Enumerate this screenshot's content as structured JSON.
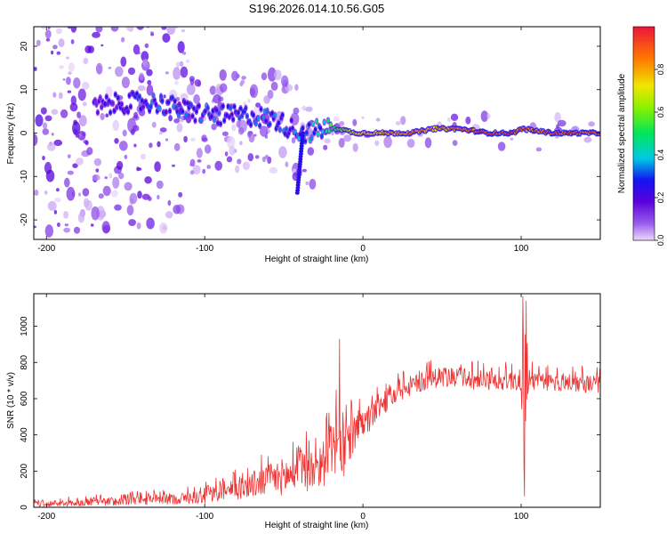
{
  "title": "S196.2026.014.10.56.G05",
  "chart_data": [
    {
      "type": "heatmap",
      "xlabel": "Height of straight line (km)",
      "ylabel": "Frequency (Hz)",
      "xlim": [
        -208,
        150
      ],
      "ylim": [
        -24.5,
        24.5
      ],
      "xticks": [
        -200,
        -100,
        0,
        100
      ],
      "yticks": [
        -20,
        -10,
        0,
        10,
        20
      ],
      "colorbar": {
        "label": "Normalized spectral amplitude",
        "range": [
          0,
          1
        ],
        "ticks": [
          "0.0",
          "0.2",
          "0.4",
          "0.6",
          "0.8"
        ],
        "tick_values": [
          0.0,
          0.2,
          0.4,
          0.6,
          0.8
        ]
      },
      "ridge": {
        "x": [
          -170,
          -150,
          -130,
          -110,
          -90,
          -70,
          -55,
          -45,
          -35,
          -25,
          -15,
          -5,
          0,
          10,
          30,
          45,
          60,
          80,
          95,
          100,
          120,
          150
        ],
        "freq": [
          6,
          7,
          7,
          5,
          4,
          4,
          3,
          1,
          0,
          1,
          1,
          0,
          0,
          0,
          0,
          1,
          1,
          0,
          0,
          1,
          0,
          0
        ],
        "amplitude": [
          0.2,
          0.25,
          0.3,
          0.3,
          0.3,
          0.3,
          0.3,
          0.3,
          0.35,
          0.45,
          0.55,
          0.65,
          0.75,
          0.8,
          0.85,
          0.8,
          0.85,
          0.95,
          0.95,
          0.85,
          0.95,
          0.9
        ]
      },
      "scatter_extent_x": [
        -208,
        -110
      ]
    },
    {
      "type": "line",
      "xlabel": "Height of straight line (km)",
      "ylabel": "SNR (10 * v/v)",
      "xlim": [
        -208,
        150
      ],
      "ylim": [
        0,
        1180
      ],
      "xticks": [
        -200,
        -100,
        0,
        100
      ],
      "yticks": [
        0,
        200,
        400,
        600,
        800,
        1000
      ],
      "color": "#ee3333",
      "series": [
        {
          "name": "SNR",
          "x": [
            -208,
            -180,
            -150,
            -120,
            -100,
            -80,
            -60,
            -45,
            -35,
            -25,
            -20,
            -15,
            -12,
            -10,
            -5,
            0,
            5,
            10,
            20,
            30,
            40,
            50,
            60,
            80,
            95,
            100,
            101,
            102,
            103,
            105,
            110,
            120,
            150
          ],
          "mean": [
            20,
            25,
            35,
            45,
            60,
            100,
            150,
            180,
            200,
            250,
            300,
            350,
            300,
            350,
            400,
            450,
            500,
            560,
            620,
            670,
            700,
            710,
            710,
            700,
            700,
            700,
            400,
            500,
            800,
            720,
            690,
            690,
            680
          ],
          "noise": [
            15,
            20,
            25,
            30,
            40,
            60,
            90,
            110,
            120,
            140,
            150,
            160,
            150,
            120,
            100,
            90,
            80,
            70,
            60,
            55,
            55,
            55,
            55,
            55,
            55,
            60,
            350,
            400,
            300,
            60,
            50,
            50,
            50
          ]
        }
      ],
      "spikes": [
        {
          "x": -15,
          "y": 930
        },
        {
          "x": -17,
          "y": 650
        },
        {
          "x": 101,
          "y": 1165
        },
        {
          "x": 102,
          "y": 60
        },
        {
          "x": 103,
          "y": 1140
        }
      ]
    }
  ]
}
